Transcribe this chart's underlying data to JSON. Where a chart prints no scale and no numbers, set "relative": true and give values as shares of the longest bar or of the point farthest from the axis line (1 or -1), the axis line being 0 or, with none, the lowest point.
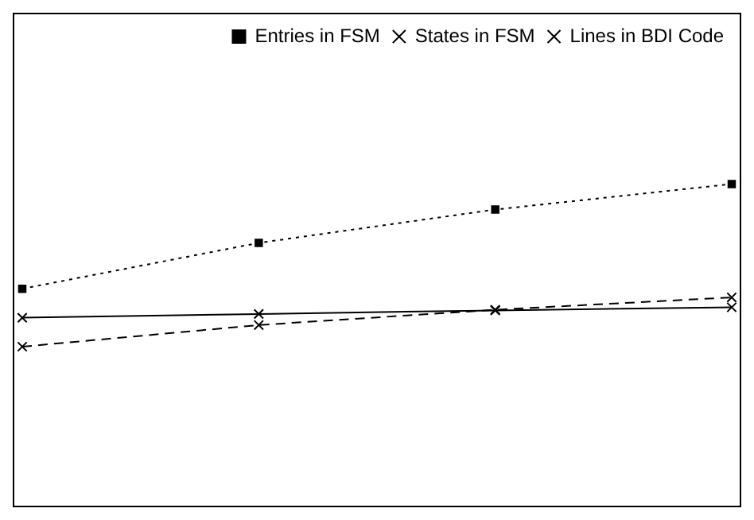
{
  "chart_data": {
    "type": "line",
    "relative": true,
    "categories": [
      null,
      null,
      null,
      null
    ],
    "legend": "top right",
    "grid": false,
    "series": [
      {
        "name": "Lines in BDI Code",
        "color": "#000000",
        "marker": "cross",
        "line_style": "solid",
        "values": [
          0.178,
          0.201,
          0.223,
          0.242
        ]
      },
      {
        "name": "States in FSM",
        "color": "#000000",
        "marker": "cross",
        "line_style": "dashed",
        "values": [
          0,
          0.133,
          0.227,
          0.303
        ]
      },
      {
        "name": "Entries in FSM",
        "color": "#000000",
        "marker": "square",
        "line_style": "dotted",
        "values": [
          0.356,
          0.638,
          0.843,
          1
        ]
      }
    ]
  }
}
